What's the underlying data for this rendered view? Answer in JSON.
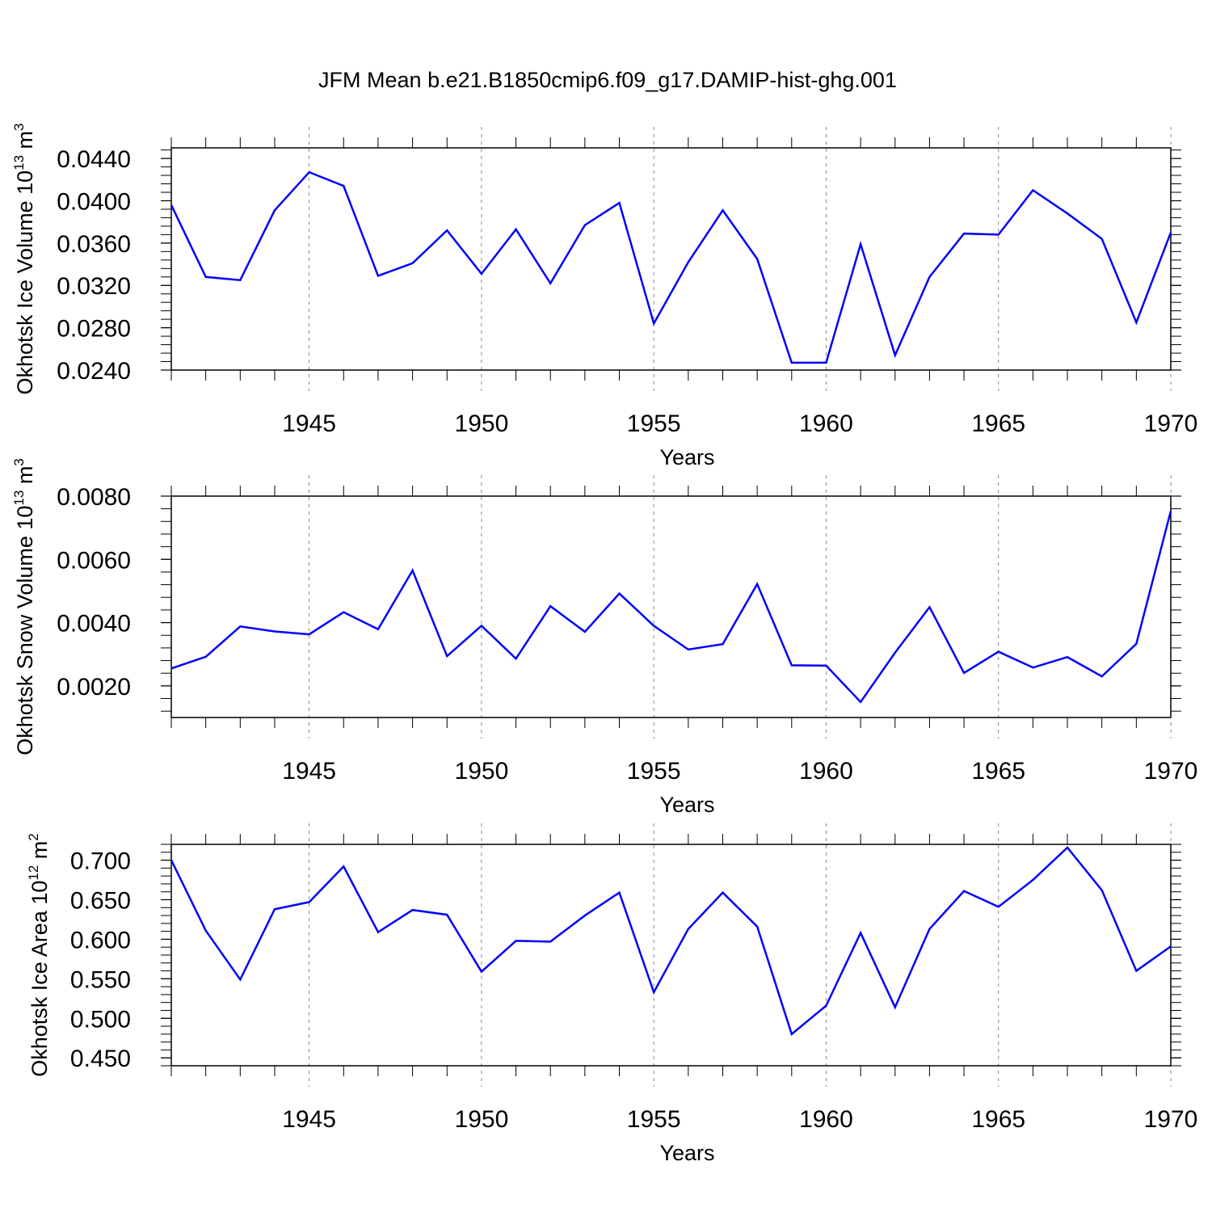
{
  "title": "JFM Mean b.e21.B1850cmip6.f09_g17.DAMIP-hist-ghg.001",
  "line_color": "#0000ff",
  "chart_data": [
    {
      "type": "line",
      "title": "JFM Mean b.e21.B1850cmip6.f09_g17.DAMIP-hist-ghg.001",
      "xlabel": "Years",
      "ylabel_main": "Okhotsk Ice Volume 10",
      "ylabel_exp": "13",
      "ylabel_unit": " m",
      "ylabel_unit_exp": "3",
      "xlim": [
        1941,
        1970
      ],
      "ylim": [
        0.024,
        0.045
      ],
      "xticks": [
        1945,
        1950,
        1955,
        1960,
        1965,
        1970
      ],
      "xtick_labels": [
        "1945",
        "1950",
        "1955",
        "1960",
        "1965",
        "1970"
      ],
      "yticks": [
        0.024,
        0.028,
        0.032,
        0.036,
        0.04,
        0.044
      ],
      "ytick_labels": [
        "0.0240",
        "0.0280",
        "0.0320",
        "0.0360",
        "0.0400",
        "0.0440"
      ],
      "x": [
        1941,
        1942,
        1943,
        1944,
        1945,
        1946,
        1947,
        1948,
        1949,
        1950,
        1951,
        1952,
        1953,
        1954,
        1955,
        1956,
        1957,
        1958,
        1959,
        1960,
        1961,
        1962,
        1963,
        1964,
        1965,
        1966,
        1967,
        1968,
        1969,
        1970
      ],
      "values": [
        0.0396,
        0.0328,
        0.0325,
        0.0391,
        0.0427,
        0.0414,
        0.0329,
        0.0341,
        0.0372,
        0.0331,
        0.0373,
        0.0322,
        0.0377,
        0.0398,
        0.0284,
        0.0342,
        0.0391,
        0.0345,
        0.0247,
        0.0247,
        0.0359,
        0.0254,
        0.0328,
        0.0369,
        0.0368,
        0.041,
        0.0388,
        0.0364,
        0.0285,
        0.037
      ]
    },
    {
      "type": "line",
      "xlabel": "Years",
      "ylabel_main": "Okhotsk Snow Volume 10",
      "ylabel_exp": "13",
      "ylabel_unit": " m",
      "ylabel_unit_exp": "3",
      "xlim": [
        1941,
        1970
      ],
      "ylim": [
        0.001,
        0.008
      ],
      "xticks": [
        1945,
        1950,
        1955,
        1960,
        1965,
        1970
      ],
      "xtick_labels": [
        "1945",
        "1950",
        "1955",
        "1960",
        "1965",
        "1970"
      ],
      "yticks": [
        0.002,
        0.004,
        0.006,
        0.008
      ],
      "ytick_labels": [
        "0.0020",
        "0.0040",
        "0.0060",
        "0.0080"
      ],
      "x": [
        1941,
        1942,
        1943,
        1944,
        1945,
        1946,
        1947,
        1948,
        1949,
        1950,
        1951,
        1952,
        1953,
        1954,
        1955,
        1956,
        1957,
        1958,
        1959,
        1960,
        1961,
        1962,
        1963,
        1964,
        1965,
        1966,
        1967,
        1968,
        1969,
        1970
      ],
      "values": [
        0.00255,
        0.00292,
        0.00388,
        0.00372,
        0.00363,
        0.00433,
        0.00379,
        0.00565,
        0.00294,
        0.0039,
        0.00286,
        0.00452,
        0.00371,
        0.00492,
        0.0039,
        0.00315,
        0.00332,
        0.00522,
        0.00265,
        0.00264,
        0.00149,
        0.00305,
        0.00449,
        0.00241,
        0.00308,
        0.00258,
        0.00291,
        0.0023,
        0.00333,
        0.00753
      ]
    },
    {
      "type": "line",
      "xlabel": "Years",
      "ylabel_main": "Okhotsk Ice Area 10",
      "ylabel_exp": "12",
      "ylabel_unit": " m",
      "ylabel_unit_exp": "2",
      "xlim": [
        1941,
        1970
      ],
      "ylim": [
        0.44,
        0.72
      ],
      "xticks": [
        1945,
        1950,
        1955,
        1960,
        1965,
        1970
      ],
      "xtick_labels": [
        "1945",
        "1950",
        "1955",
        "1960",
        "1965",
        "1970"
      ],
      "yticks": [
        0.45,
        0.5,
        0.55,
        0.6,
        0.65,
        0.7
      ],
      "ytick_labels": [
        "0.450",
        "0.500",
        "0.550",
        "0.600",
        "0.650",
        "0.700"
      ],
      "x": [
        1941,
        1942,
        1943,
        1944,
        1945,
        1946,
        1947,
        1948,
        1949,
        1950,
        1951,
        1952,
        1953,
        1954,
        1955,
        1956,
        1957,
        1958,
        1959,
        1960,
        1961,
        1962,
        1963,
        1964,
        1965,
        1966,
        1967,
        1968,
        1969,
        1970
      ],
      "values": [
        0.7,
        0.611,
        0.549,
        0.638,
        0.647,
        0.692,
        0.609,
        0.637,
        0.631,
        0.559,
        0.598,
        0.597,
        0.63,
        0.659,
        0.533,
        0.613,
        0.659,
        0.616,
        0.48,
        0.516,
        0.608,
        0.514,
        0.613,
        0.661,
        0.641,
        0.675,
        0.716,
        0.662,
        0.56,
        0.591
      ]
    }
  ]
}
